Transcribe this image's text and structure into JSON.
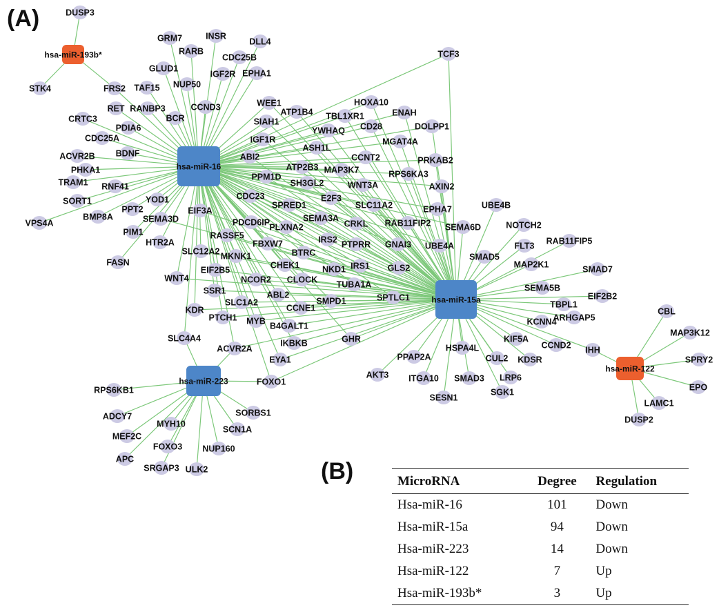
{
  "panel_a_label": "(A)",
  "panel_b_label": "(B)",
  "colors": {
    "edge": "#7dc87a",
    "target": "#cccae4",
    "down_hub": "#4d86c8",
    "up_hub": "#ec5f2e"
  },
  "hubs": [
    {
      "id": "hsa-miR-16",
      "regulation": "Down"
    },
    {
      "id": "hsa-miR-15a",
      "regulation": "Down"
    },
    {
      "id": "hsa-miR-223",
      "regulation": "Down"
    },
    {
      "id": "hsa-miR-122",
      "regulation": "Up"
    },
    {
      "id": "hsa-miR-193b*",
      "regulation": "Up"
    }
  ],
  "targets": {
    "hsa-miR-193b*": [
      "DUSP3",
      "STK4",
      "FRS2"
    ],
    "hsa-miR-122": [
      "CBL",
      "MAP3K12",
      "SPRY2",
      "EPO",
      "LAMC1",
      "DUSP2",
      "IHH"
    ],
    "hsa-miR-223": [
      "RPS6KB1",
      "ADCY7",
      "MEF2C",
      "APC",
      "MYH10",
      "SRGAP3",
      "FOXO3",
      "ULK2",
      "NUP160",
      "SCN1A",
      "SORBS1",
      "FOXO1",
      "ACVR2A",
      "SLC4A4"
    ],
    "hsa-miR-16": [
      "GRM7",
      "INSR",
      "DLL4",
      "RARB",
      "CDC25B",
      "GLUD1",
      "NUP50",
      "IGF2R",
      "EPHA1",
      "FRS2",
      "TAF15",
      "CCND3",
      "RET",
      "RANBP3",
      "BCR",
      "CRTC3",
      "PDIA6",
      "CDC25A",
      "ACVR2B",
      "BDNF",
      "PHKA1",
      "TRAM1",
      "RNF41",
      "SORT1",
      "YOD1",
      "VPS4A",
      "BMP8A",
      "PPT2",
      "SEMA3D",
      "PIM1",
      "HTR2A",
      "FASN",
      "TCF3",
      "HOXA10",
      "WEE1",
      "ATP1B4",
      "TBL1XR1",
      "ENAH",
      "SIAH1",
      "YWHAQ",
      "CD28",
      "DOLPP1",
      "IGF1R",
      "ASH1L",
      "MGAT4A",
      "ABI2",
      "CCNT2",
      "PRKAB2",
      "ATP2B3",
      "MAP3K7",
      "RPS6KA3",
      "PPM1D",
      "SH3GL2",
      "WNT3A",
      "AXIN2",
      "EIF3A",
      "CDC23",
      "E2F3",
      "SPRED1",
      "SLC11A2",
      "EPHA7",
      "PDCD6IP",
      "SEMA3A",
      "RAB11FIP2",
      "SEMA6D",
      "RASSF5",
      "PLXNA2",
      "CRKL",
      "UBE4A",
      "FBXW7",
      "IRS2",
      "PTPRR",
      "GNAI3",
      "SLC12A2",
      "MKNK1",
      "BTRC",
      "EIF2B5",
      "CHEK1",
      "NKD1",
      "IRS1",
      "GLS2",
      "NCOR2",
      "CLOCK",
      "TUBA1A",
      "WNT4",
      "SSR1",
      "ABL2",
      "SMPD1",
      "SPTLC1",
      "KDR",
      "SLC1A2",
      "CCNE1",
      "PTCH1",
      "MYB",
      "B4GALT1",
      "IKBKB",
      "GHR",
      "EYA1",
      "SLC4A4",
      "ACVR2A",
      "FOXO1"
    ],
    "hsa-miR-15a": [
      "TCF3",
      "HOXA10",
      "ENAH",
      "DOLPP1",
      "PRKAB2",
      "AXIN2",
      "EPHA7",
      "SEMA6D",
      "UBE4B",
      "NOTCH2",
      "RAB11FIP5",
      "FLT3",
      "MAP2K1",
      "SMAD7",
      "SMAD5",
      "SEMA5B",
      "EIF2B2",
      "TBPL1",
      "ARHGAP5",
      "KCNN4",
      "CCND2",
      "IHH",
      "KIF5A",
      "KDSR",
      "LRP6",
      "CUL2",
      "SGK1",
      "SMAD3",
      "HSPA4L",
      "SESN1",
      "ITGA10",
      "PPAP2A",
      "AKT3",
      "UBE4A",
      "GLS2",
      "SPTLC1",
      "GHR",
      "RAB11FIP2",
      "GNAI3",
      "TUBA1A",
      "SMPD1",
      "IRS1",
      "CRKL",
      "SLC11A2",
      "WNT3A",
      "RPS6KA3",
      "MGAT4A",
      "CCNT2",
      "TBL1XR1",
      "CD28",
      "YWHAQ",
      "ASH1L",
      "MAP3K7",
      "E2F3",
      "SEMA3A",
      "PTPRR",
      "IRS2",
      "NKD1",
      "CLOCK",
      "CCNE1",
      "ABL2",
      "PLXNA2",
      "BTRC",
      "CHEK1",
      "NCOR2",
      "B4GALT1",
      "MYB",
      "IKBKB",
      "EYA1",
      "SLC1A2",
      "SSR1",
      "FBXW7",
      "MKNK1",
      "PDCD6IP",
      "SPRED1",
      "SH3GL2",
      "ATP2B3",
      "PPM1D",
      "ABI2",
      "IGF1R",
      "SIAH1",
      "ATP1B4",
      "WEE1",
      "CDC23",
      "RASSF5",
      "EIF2B5",
      "SLC12A2",
      "PTCH1",
      "KDR",
      "WNT4",
      "EIF3A",
      "SEMA3D",
      "FOXO1",
      "ACVR2A"
    ]
  },
  "table": {
    "headers": [
      "MicroRNA",
      "Degree",
      "Regulation"
    ],
    "rows": [
      [
        "Hsa-miR-16",
        "101",
        "Down"
      ],
      [
        "Hsa-miR-15a",
        "94",
        "Down"
      ],
      [
        "Hsa-miR-223",
        "14",
        "Down"
      ],
      [
        "Hsa-miR-122",
        "7",
        "Up"
      ],
      [
        "Hsa-miR-193b*",
        "3",
        "Up"
      ]
    ]
  }
}
